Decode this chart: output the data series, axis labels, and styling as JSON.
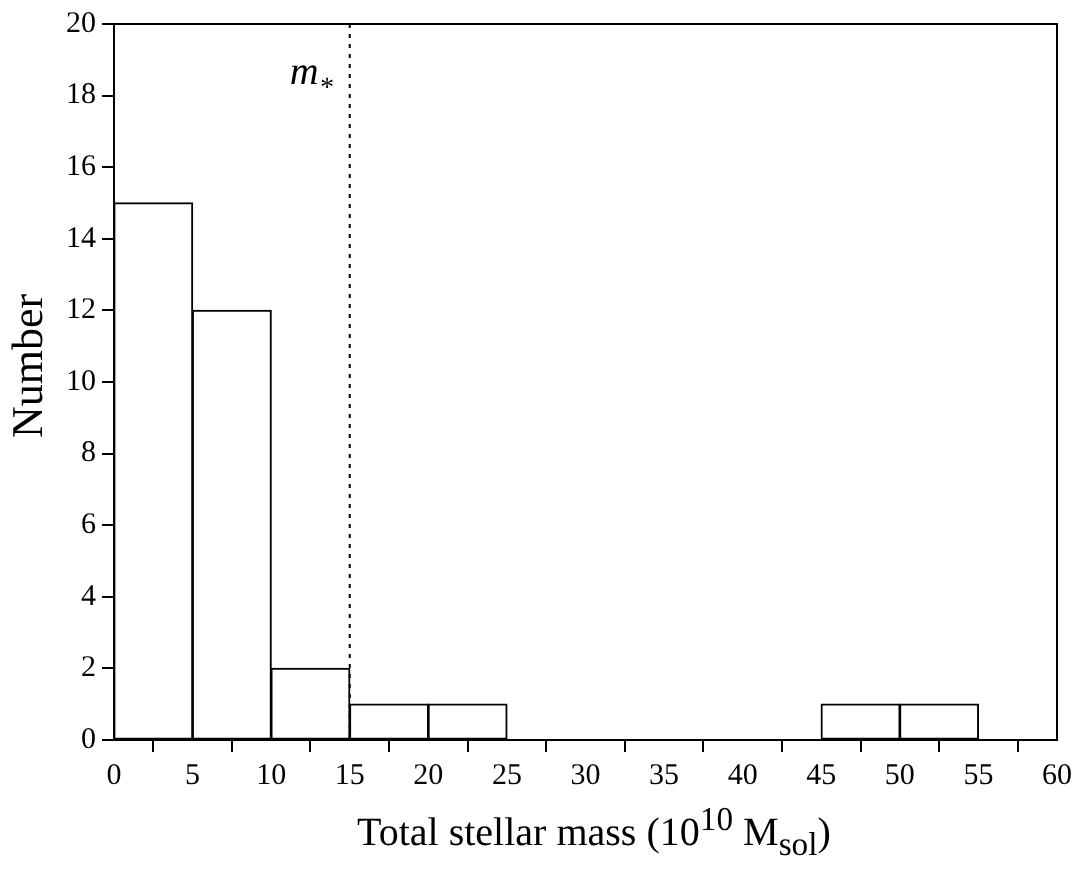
{
  "chart_data": {
    "type": "histogram",
    "xlabel": "Total stellar mass (10$^{10}$ M$_{sol}$)",
    "ylabel": "Number",
    "bins": [
      0,
      5,
      10,
      15,
      20,
      25,
      30,
      35,
      40,
      45,
      50,
      55,
      60
    ],
    "values": [
      15,
      12,
      2,
      1,
      1,
      0,
      0,
      0,
      0,
      1,
      1,
      0
    ],
    "color": "#ffffff",
    "xlim": [
      0,
      60
    ],
    "xticks": [
      0,
      5,
      10,
      15,
      20,
      25,
      30,
      35,
      40,
      45,
      50,
      55,
      60
    ],
    "ylim": [
      0,
      20
    ],
    "yticks": [
      0,
      2,
      4,
      6,
      8,
      10,
      12,
      14,
      16,
      18,
      20
    ],
    "grid": false,
    "legend": false,
    "ref_lines": [
      {
        "axis": "x",
        "value": 15,
        "label": "m$_{*}$",
        "line_style": "dotted"
      }
    ]
  }
}
